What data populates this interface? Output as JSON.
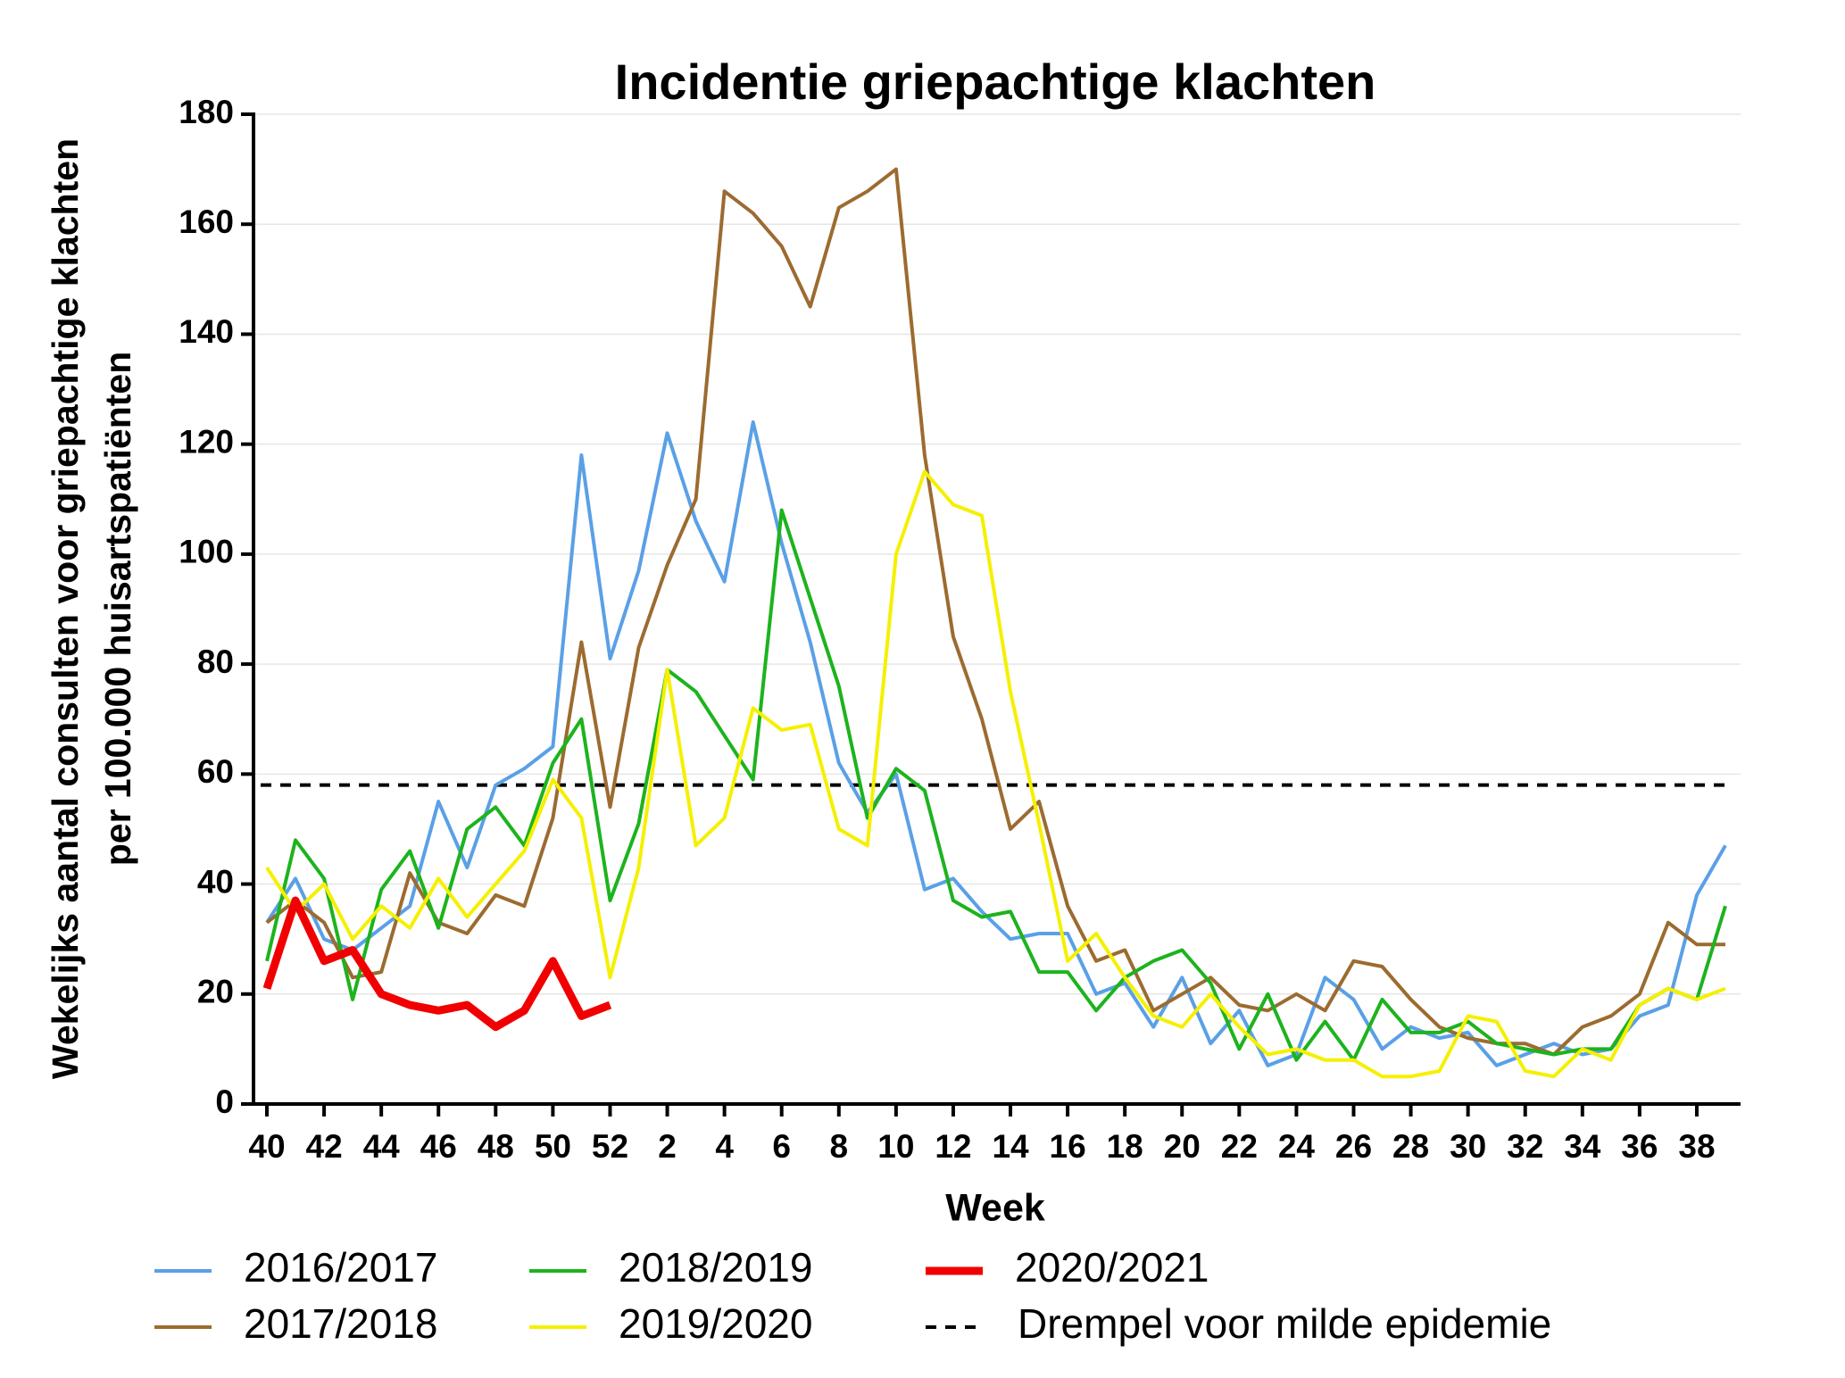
{
  "chart_data": {
    "type": "line",
    "title": "Incidentie griepachtige klachten",
    "ylabel": [
      "Wekelijks aantal consulten voor griepachtige klachten",
      "per 100.000 huisartspatiënten"
    ],
    "xlabel": "Week",
    "categories": [
      "40",
      null,
      "42",
      null,
      "44",
      null,
      "46",
      null,
      "48",
      null,
      "50",
      null,
      "52",
      null,
      "2",
      null,
      "4",
      null,
      "6",
      null,
      "8",
      null,
      "10",
      null,
      "12",
      null,
      "14",
      null,
      "16",
      null,
      "18",
      null,
      "20",
      null,
      "22",
      null,
      "24",
      null,
      "26",
      null,
      "28",
      null,
      "30",
      null,
      "32",
      null,
      "34",
      null,
      "36",
      null,
      "38",
      null
    ],
    "ylim": [
      0,
      180
    ],
    "yticks": [
      0,
      20,
      40,
      60,
      80,
      100,
      120,
      140,
      160,
      180
    ],
    "grid": true,
    "series": [
      {
        "name": "2016/2017",
        "color": "#5aa0e6",
        "values": [
          33,
          41,
          30,
          28,
          32,
          36,
          55,
          43,
          58,
          61,
          65,
          118,
          81,
          97,
          122,
          106,
          95,
          124,
          102,
          84,
          62,
          53,
          60,
          39,
          41,
          35,
          30,
          31,
          31,
          20,
          22,
          14,
          23,
          11,
          17,
          7,
          9,
          23,
          19,
          10,
          14,
          12,
          13,
          7,
          9,
          11,
          9,
          10,
          16,
          18,
          38,
          47
        ]
      },
      {
        "name": "2017/2018",
        "color": "#9c6b30",
        "values": [
          33,
          37,
          33,
          23,
          24,
          42,
          33,
          31,
          38,
          36,
          52,
          84,
          54,
          83,
          98,
          110,
          166,
          162,
          156,
          145,
          163,
          166,
          170,
          118,
          85,
          70,
          50,
          55,
          36,
          26,
          28,
          17,
          20,
          23,
          18,
          17,
          20,
          17,
          26,
          25,
          19,
          14,
          12,
          11,
          11,
          9,
          14,
          16,
          20,
          33,
          29,
          29
        ]
      },
      {
        "name": "2018/2019",
        "color": "#1db31d",
        "values": [
          26,
          48,
          41,
          19,
          39,
          46,
          32,
          50,
          54,
          47,
          62,
          70,
          37,
          51,
          79,
          75,
          67,
          59,
          108,
          92,
          76,
          52,
          61,
          57,
          37,
          34,
          35,
          24,
          24,
          17,
          23,
          26,
          28,
          22,
          10,
          20,
          8,
          15,
          8,
          19,
          13,
          13,
          15,
          11,
          10,
          9,
          10,
          10,
          18,
          21,
          19,
          36
        ]
      },
      {
        "name": "2019/2020",
        "color": "#f5f000",
        "values": [
          43,
          35,
          40,
          30,
          36,
          32,
          41,
          34,
          40,
          46,
          59,
          52,
          23,
          43,
          79,
          47,
          52,
          72,
          68,
          69,
          50,
          47,
          100,
          115,
          109,
          107,
          75,
          51,
          26,
          31,
          23,
          16,
          14,
          20,
          14,
          9,
          10,
          8,
          8,
          5,
          5,
          6,
          16,
          15,
          6,
          5,
          10,
          8,
          18,
          21,
          19,
          21
        ]
      },
      {
        "name": "2020/2021",
        "color": "#f00000",
        "values": [
          21,
          37,
          26,
          28,
          20,
          18,
          17,
          18,
          14,
          17,
          26,
          16,
          18,
          null,
          null,
          null,
          null,
          null,
          null,
          null,
          null,
          null,
          null,
          null,
          null,
          null,
          null,
          null,
          null,
          null,
          null,
          null,
          null,
          null,
          null,
          null,
          null,
          null,
          null,
          null,
          null,
          null,
          null,
          null,
          null,
          null,
          null,
          null,
          null,
          null,
          null,
          null
        ]
      }
    ],
    "threshold": 58,
    "threshold_label": "Drempel voor milde epidemie"
  }
}
